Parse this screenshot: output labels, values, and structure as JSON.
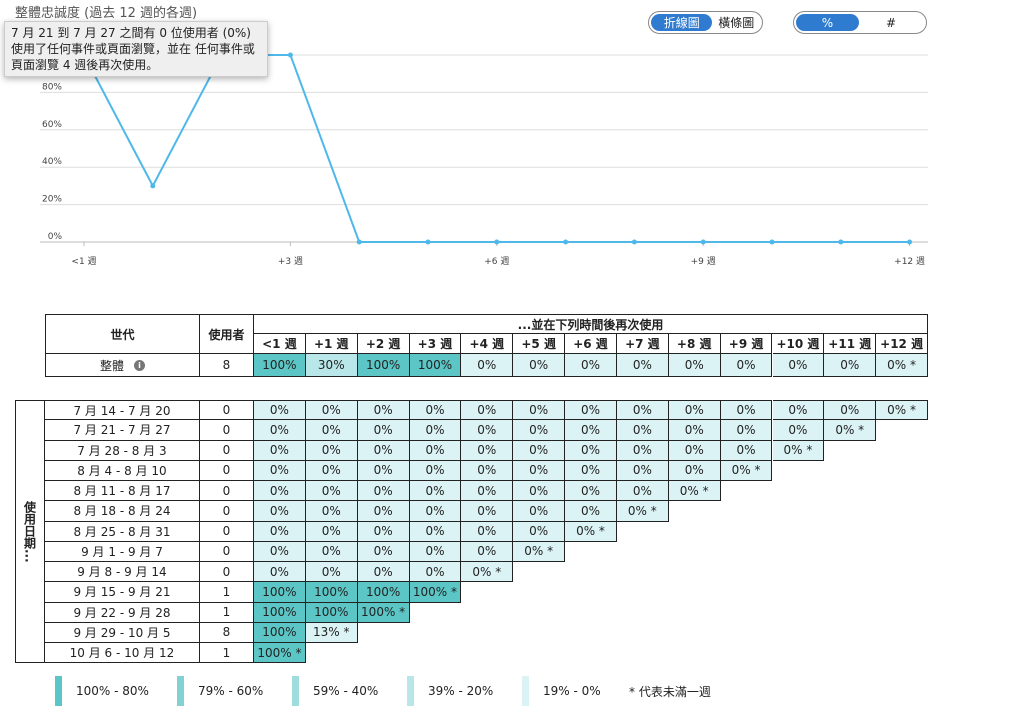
{
  "chart_title": "整體忠誠度 (過去 12 週的各週)",
  "tooltip": "7 月 21 到 7 月 27 之間有 0 位使用者 (0%) 使用了任何事件或頁面瀏覽，並在 任何事件或頁面瀏覽 4 週後再次使用。",
  "chart_type_toggle": {
    "options": [
      "折線圖",
      "橫條圖"
    ],
    "selected": "折線圖"
  },
  "unit_toggle": {
    "options": [
      "%",
      "#"
    ],
    "selected": "%"
  },
  "colors": {
    "accent": "#2f7bd0",
    "line": "#4fb8ea",
    "c100_80": "#5cc6c6",
    "c79_60": "#82d2d4",
    "c59_40": "#9edcde",
    "c39_20": "#b9e7e9",
    "c19_0": "#dcf3f5"
  },
  "chart_data": {
    "type": "line",
    "title": "整體忠誠度 (過去 12 週的各週)",
    "categories": [
      "<1 週",
      "+1 週",
      "+2 週",
      "+3 週",
      "+4 週",
      "+5 週",
      "+6 週",
      "+7 週",
      "+8 週",
      "+9 週",
      "+10 週",
      "+11 週",
      "+12 週"
    ],
    "x_tick_labels": [
      "<1 週",
      "+3 週",
      "+6 週",
      "+9 週",
      "+12 週"
    ],
    "values": [
      100,
      30,
      100,
      100,
      0,
      0,
      0,
      0,
      0,
      0,
      0,
      0,
      0
    ],
    "y_ticks": [
      "0%",
      "20%",
      "40%",
      "60%",
      "80%"
    ],
    "ylim": [
      0,
      100
    ],
    "grid": true
  },
  "table": {
    "col_cohort": "世代",
    "col_users": "使用者",
    "col_return": "...並在下列時間後再次使用",
    "weeks": [
      "<1 週",
      "+1 週",
      "+2 週",
      "+3 週",
      "+4 週",
      "+5 週",
      "+6 週",
      "+7 週",
      "+8 週",
      "+9 週",
      "+10 週",
      "+11 週",
      "+12 週"
    ],
    "overall": {
      "label": "整體",
      "users": "8",
      "values": [
        "100%",
        "30%",
        "100%",
        "100%",
        "0%",
        "0%",
        "0%",
        "0%",
        "0%",
        "0%",
        "0%",
        "0%",
        "0% *"
      ],
      "levels": [
        100,
        30,
        100,
        100,
        0,
        0,
        0,
        0,
        0,
        0,
        0,
        0,
        0
      ]
    },
    "side_label": "使用日期...",
    "cohorts": [
      {
        "label": "7 月 14 - 7 月 20",
        "users": "0",
        "values": [
          "0%",
          "0%",
          "0%",
          "0%",
          "0%",
          "0%",
          "0%",
          "0%",
          "0%",
          "0%",
          "0%",
          "0%",
          "0% *"
        ],
        "levels": [
          0,
          0,
          0,
          0,
          0,
          0,
          0,
          0,
          0,
          0,
          0,
          0,
          0
        ]
      },
      {
        "label": "7 月 21 - 7 月 27",
        "users": "0",
        "values": [
          "0%",
          "0%",
          "0%",
          "0%",
          "0%",
          "0%",
          "0%",
          "0%",
          "0%",
          "0%",
          "0%",
          "0% *"
        ],
        "levels": [
          0,
          0,
          0,
          0,
          0,
          0,
          0,
          0,
          0,
          0,
          0,
          0
        ]
      },
      {
        "label": "7 月 28 - 8 月 3",
        "users": "0",
        "values": [
          "0%",
          "0%",
          "0%",
          "0%",
          "0%",
          "0%",
          "0%",
          "0%",
          "0%",
          "0%",
          "0% *"
        ],
        "levels": [
          0,
          0,
          0,
          0,
          0,
          0,
          0,
          0,
          0,
          0,
          0
        ]
      },
      {
        "label": "8 月 4 - 8 月 10",
        "users": "0",
        "values": [
          "0%",
          "0%",
          "0%",
          "0%",
          "0%",
          "0%",
          "0%",
          "0%",
          "0%",
          "0% *"
        ],
        "levels": [
          0,
          0,
          0,
          0,
          0,
          0,
          0,
          0,
          0,
          0
        ]
      },
      {
        "label": "8 月 11 - 8 月 17",
        "users": "0",
        "values": [
          "0%",
          "0%",
          "0%",
          "0%",
          "0%",
          "0%",
          "0%",
          "0%",
          "0% *"
        ],
        "levels": [
          0,
          0,
          0,
          0,
          0,
          0,
          0,
          0,
          0
        ]
      },
      {
        "label": "8 月 18 - 8 月 24",
        "users": "0",
        "values": [
          "0%",
          "0%",
          "0%",
          "0%",
          "0%",
          "0%",
          "0%",
          "0% *"
        ],
        "levels": [
          0,
          0,
          0,
          0,
          0,
          0,
          0,
          0
        ]
      },
      {
        "label": "8 月 25 - 8 月 31",
        "users": "0",
        "values": [
          "0%",
          "0%",
          "0%",
          "0%",
          "0%",
          "0%",
          "0% *"
        ],
        "levels": [
          0,
          0,
          0,
          0,
          0,
          0,
          0
        ]
      },
      {
        "label": "9 月 1 - 9 月 7",
        "users": "0",
        "values": [
          "0%",
          "0%",
          "0%",
          "0%",
          "0%",
          "0% *"
        ],
        "levels": [
          0,
          0,
          0,
          0,
          0,
          0
        ]
      },
      {
        "label": "9 月 8 - 9 月 14",
        "users": "0",
        "values": [
          "0%",
          "0%",
          "0%",
          "0%",
          "0% *"
        ],
        "levels": [
          0,
          0,
          0,
          0,
          0
        ]
      },
      {
        "label": "9 月 15 - 9 月 21",
        "users": "1",
        "values": [
          "100%",
          "100%",
          "100%",
          "100% *"
        ],
        "levels": [
          100,
          100,
          100,
          100
        ]
      },
      {
        "label": "9 月 22 - 9 月 28",
        "users": "1",
        "values": [
          "100%",
          "100%",
          "100% *"
        ],
        "levels": [
          100,
          100,
          100
        ]
      },
      {
        "label": "9 月 29 - 10 月 5",
        "users": "8",
        "values": [
          "100%",
          "13% *"
        ],
        "levels": [
          100,
          13
        ]
      },
      {
        "label": "10 月 6 - 10 月 12",
        "users": "1",
        "values": [
          "100% *"
        ],
        "levels": [
          100
        ]
      }
    ]
  },
  "legend": {
    "items": [
      "100% - 80%",
      "79% - 60%",
      "59% - 40%",
      "39% - 20%",
      "19% - 0%"
    ],
    "note": "* 代表未滿一週"
  }
}
